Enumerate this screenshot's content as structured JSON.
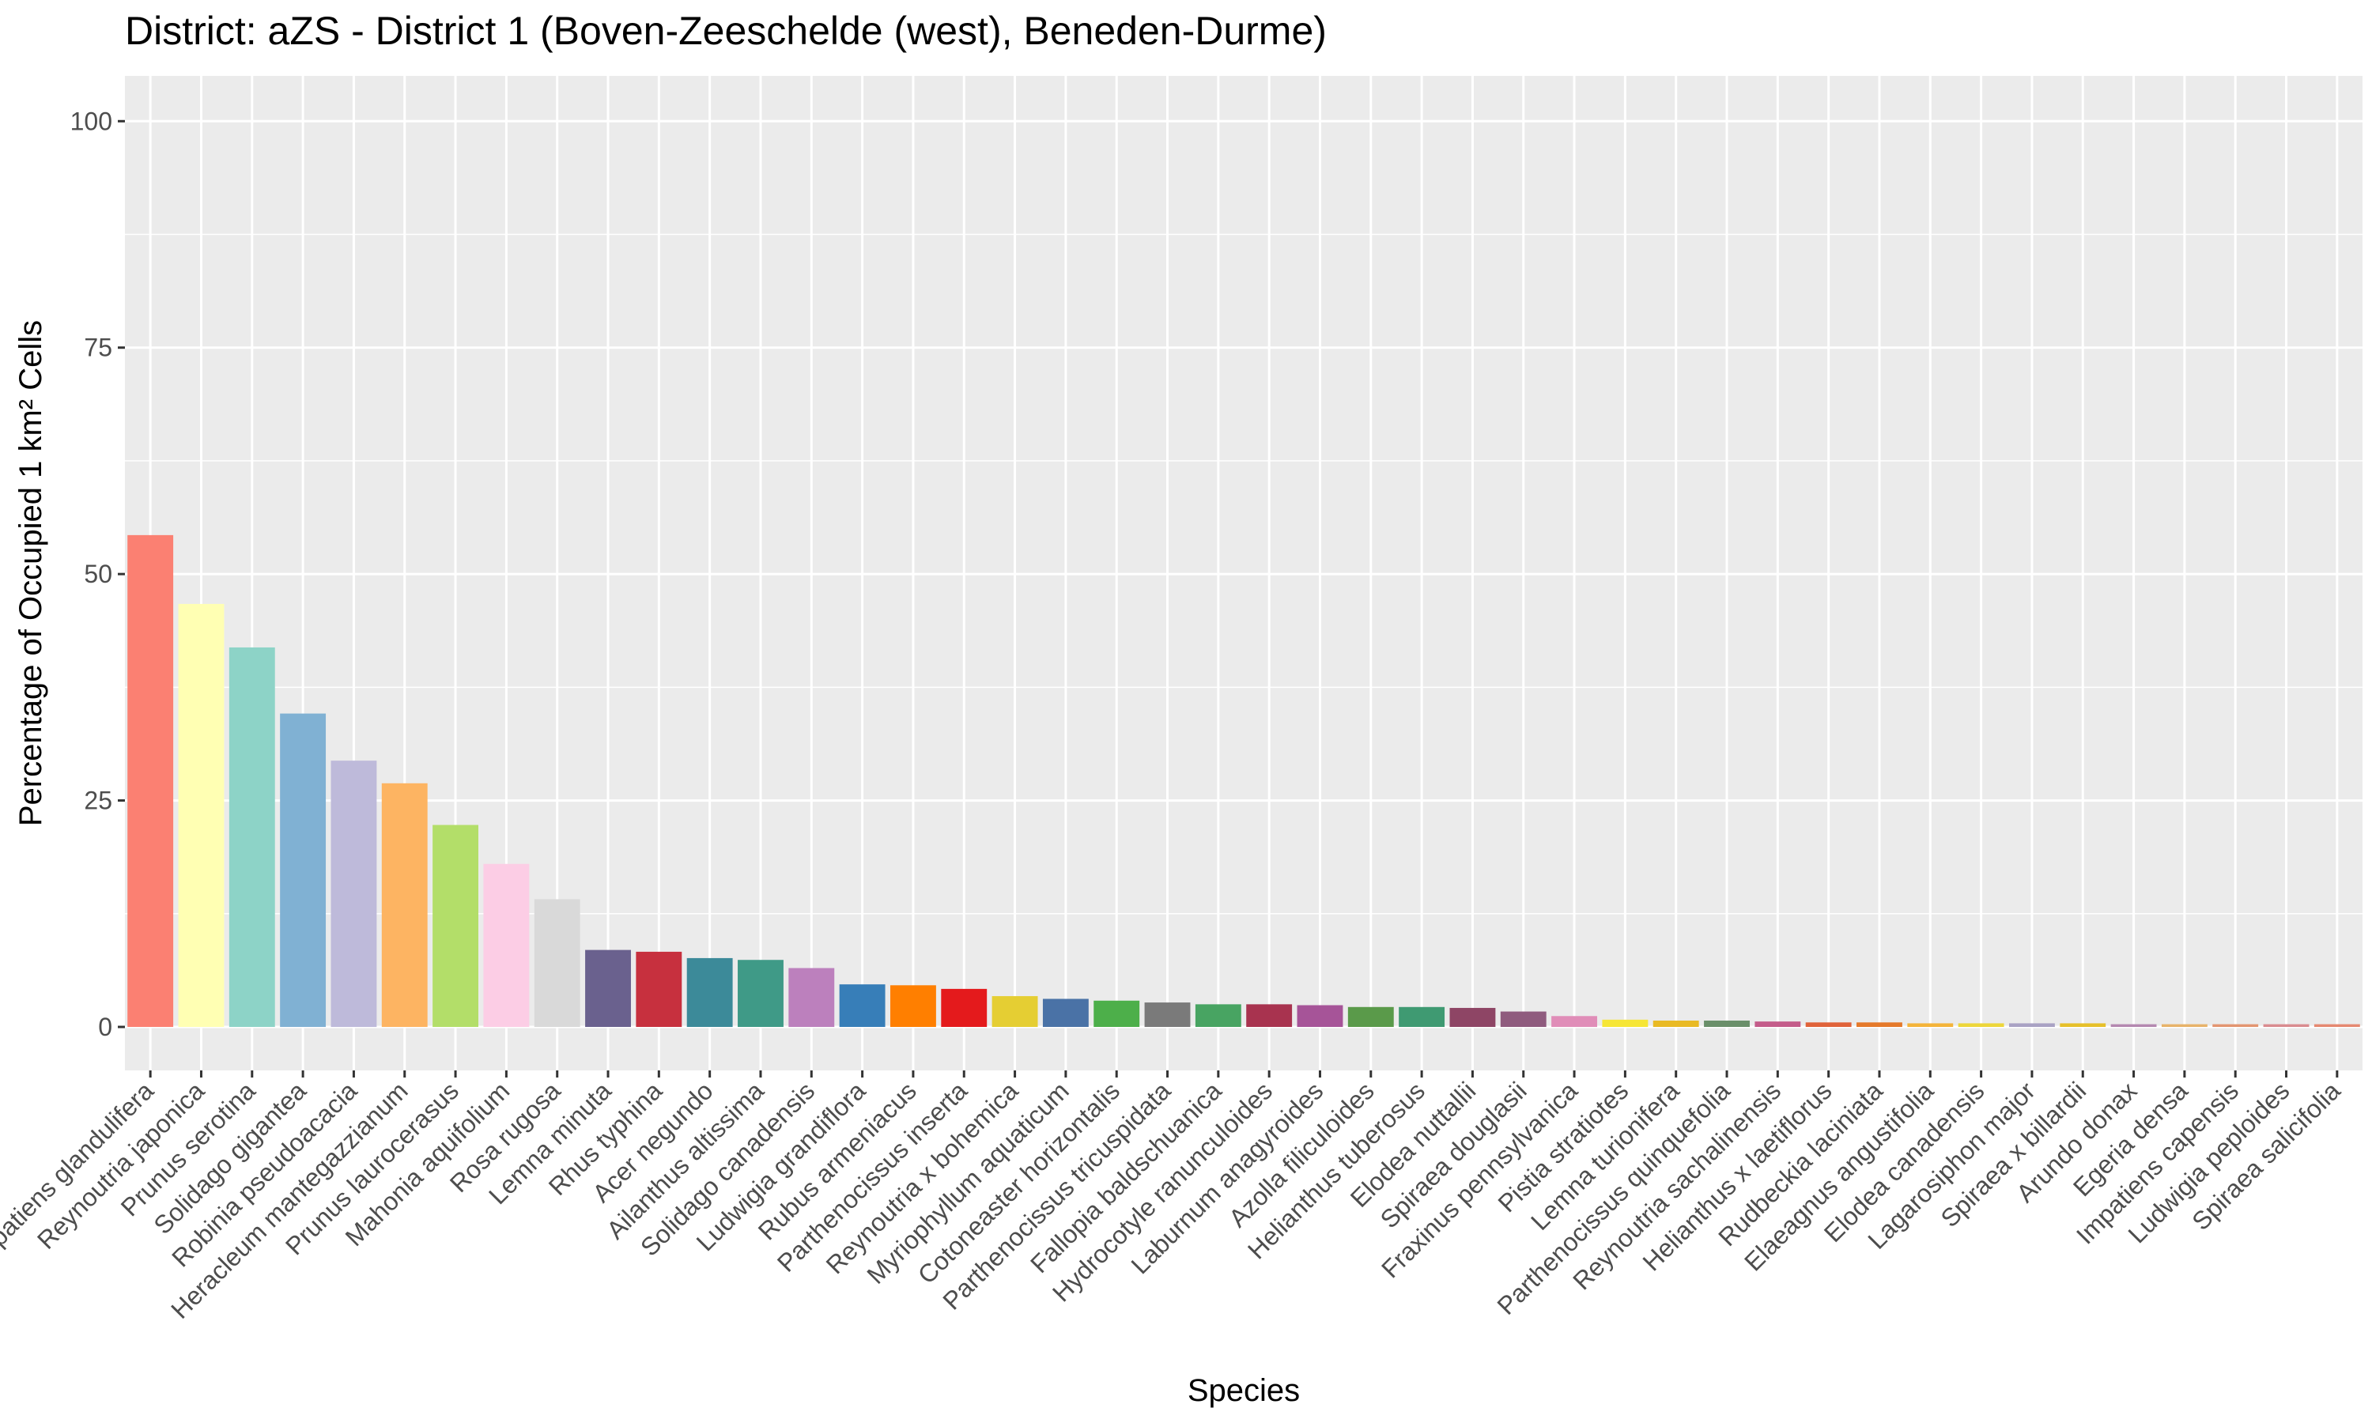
{
  "chart_data": {
    "type": "bar",
    "title": "District: aZS - District 1 (Boven-Zeeschelde (west), Beneden-Durme)",
    "xlabel": "Species",
    "ylabel": "Percentage of Occupied 1 km² Cells",
    "ylim": [
      -4.8,
      105
    ],
    "yticks": [
      0,
      25,
      50,
      75,
      100
    ],
    "grid": true,
    "legend": "none",
    "background": "#EBEBEB",
    "categories": [
      "Impatiens glandulifera",
      "Reynoutria japonica",
      "Prunus serotina",
      "Solidago gigantea",
      "Robinia pseudoacacia",
      "Heracleum mantegazzianum",
      "Prunus laurocerasus",
      "Mahonia aquifolium",
      "Rosa rugosa",
      "Lemna minuta",
      "Rhus typhina",
      "Acer negundo",
      "Ailanthus altissima",
      "Solidago canadensis",
      "Ludwigia grandiflora",
      "Rubus armeniacus",
      "Parthenocissus inserta",
      "Reynoutria x bohemica",
      "Myriophyllum aquaticum",
      "Cotoneaster horizontalis",
      "Parthenocissus tricuspidata",
      "Fallopia baldschuanica",
      "Hydrocotyle ranunculoides",
      "Laburnum anagyroides",
      "Azolla filiculoides",
      "Helianthus tuberosus",
      "Elodea nuttallii",
      "Spiraea douglasii",
      "Fraxinus pennsylvanica",
      "Pistia stratiotes",
      "Lemna turionifera",
      "Parthenocissus quinquefolia",
      "Reynoutria sachalinensis",
      "Helianthus x laetiflorus",
      "Rudbeckia laciniata",
      "Elaeagnus angustifolia",
      "Elodea canadensis",
      "Lagarosiphon major",
      "Spiraea x billardii",
      "Arundo donax",
      "Egeria densa",
      "Impatiens capensis",
      "Ludwigia peploides",
      "Spiraea salicifolia"
    ],
    "values": [
      54.3,
      46.7,
      41.9,
      34.6,
      29.4,
      26.9,
      22.3,
      18.0,
      14.1,
      8.5,
      8.3,
      7.6,
      7.4,
      6.5,
      4.7,
      4.6,
      4.2,
      3.4,
      3.1,
      2.9,
      2.7,
      2.5,
      2.5,
      2.4,
      2.2,
      2.2,
      2.1,
      1.7,
      1.2,
      0.8,
      0.7,
      0.7,
      0.6,
      0.5,
      0.5,
      0.4,
      0.4,
      0.4,
      0.4,
      0.3,
      0.3,
      0.3,
      0.3,
      0.3
    ],
    "colors": [
      "#FB8072",
      "#FFFFB3",
      "#8DD3C7",
      "#80B1D3",
      "#BEBADA",
      "#FDB462",
      "#B3DE69",
      "#FCCDE5",
      "#D9D9D9",
      "#6A618E",
      "#C7303E",
      "#3C8A99",
      "#3F9A87",
      "#BC80BD",
      "#377EB8",
      "#FF7F00",
      "#E41A1C",
      "#E5CE33",
      "#4A72A6",
      "#4DAF4A",
      "#7A7A7A",
      "#48A462",
      "#A8334F",
      "#A65498",
      "#5A9A4A",
      "#3F9A72",
      "#8E4565",
      "#8F5B7E",
      "#E08DB8",
      "#F6E636",
      "#E9BA24",
      "#6A8F6A",
      "#C45C8A",
      "#E0633A",
      "#E5792A",
      "#F4B43A",
      "#EDD63A",
      "#A9A2C4",
      "#E6C02A",
      "#B488B0",
      "#E7B36A",
      "#E39570",
      "#D98B8F",
      "#E58870"
    ]
  }
}
